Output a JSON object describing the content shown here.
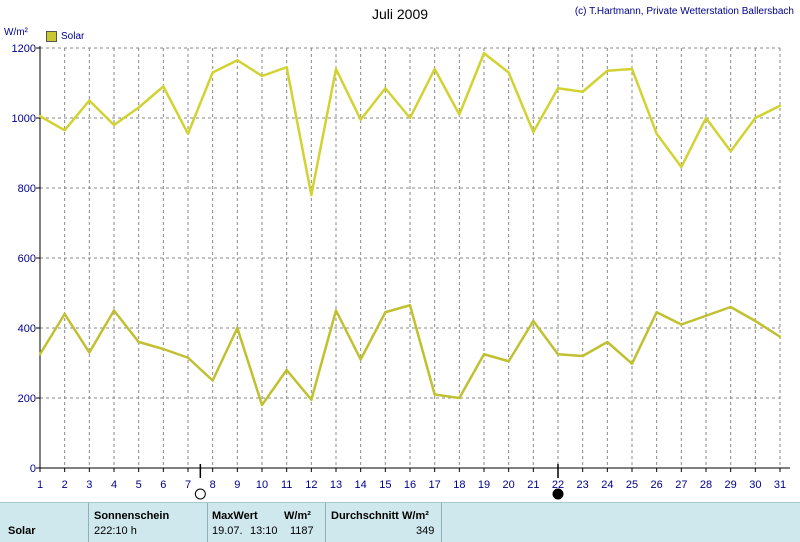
{
  "header": {
    "title": "Juli 2009",
    "credit": "(c) T.Hartmann, Private Wetterstation Ballersbach",
    "unit": "W/m²"
  },
  "legend": {
    "label": "Solar",
    "color": "#c8c832"
  },
  "chart_data": {
    "type": "line",
    "title": "Juli 2009",
    "ylabel": "W/m²",
    "xlabel": "",
    "ylim": [
      0,
      1200
    ],
    "xlim": [
      1,
      31
    ],
    "grid": true,
    "legend_position": "top-left",
    "x": [
      1,
      2,
      3,
      4,
      5,
      6,
      7,
      8,
      9,
      10,
      11,
      12,
      13,
      14,
      15,
      16,
      17,
      18,
      19,
      20,
      21,
      22,
      23,
      24,
      25,
      26,
      27,
      28,
      29,
      30,
      31
    ],
    "y_ticks": [
      0,
      200,
      400,
      600,
      800,
      1000,
      1200
    ],
    "series": [
      {
        "name": "Solar",
        "color": "#d2d232",
        "values": [
          1005,
          965,
          1050,
          980,
          1030,
          1090,
          955,
          1130,
          1165,
          1120,
          1145,
          780,
          1140,
          995,
          1085,
          1000,
          1140,
          1010,
          1185,
          1130,
          960,
          1085,
          1075,
          1135,
          1140,
          955,
          860,
          1000,
          905,
          1000,
          1035
        ]
      },
      {
        "color": "#c0c030",
        "values": [
          325,
          440,
          330,
          450,
          360,
          340,
          315,
          250,
          400,
          180,
          280,
          195,
          450,
          310,
          445,
          465,
          210,
          200,
          325,
          305,
          420,
          325,
          320,
          360,
          298,
          445,
          410,
          435,
          460,
          420,
          375
        ]
      }
    ],
    "moon_phases": [
      {
        "day": 7.5,
        "phase": "full"
      },
      {
        "day": 22,
        "phase": "new"
      }
    ]
  },
  "stats": {
    "row_label": "Solar",
    "sunshine_label": "Sonnenschein",
    "sunshine_value": "222:10 h",
    "max_label": "MaxWert",
    "max_unit": "W/m²",
    "max_date": "19.07.",
    "max_time": "13:10",
    "max_value": "1187",
    "avg_label": "Durchschnitt",
    "avg_unit": "W/m²",
    "avg_value": "349"
  }
}
